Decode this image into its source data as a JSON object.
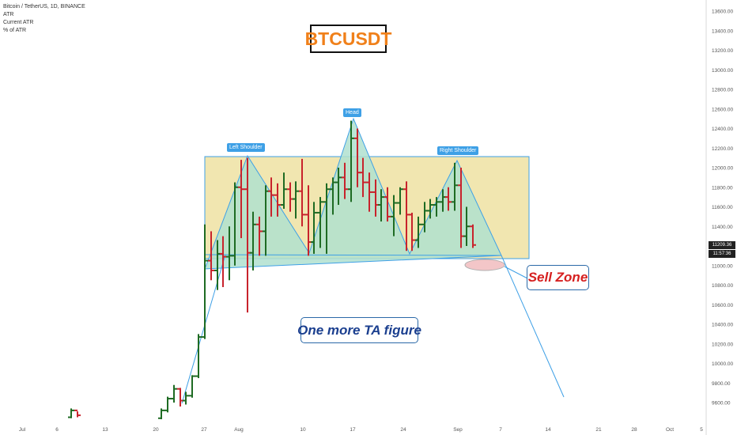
{
  "legend": {
    "line1": "Bitcoin / TetherUS, 1D, BINANCE",
    "line2": "ATR",
    "line3": "Current ATR",
    "line4": "% of ATR"
  },
  "title_box": "BTCUSDT",
  "notes": {
    "ta": "One more TA figure",
    "sell": "Sell Zone"
  },
  "pattern_labels": {
    "left_shoulder": "Left Shoulder",
    "head": "Head",
    "right_shoulder": "Right Shoulder"
  },
  "price_labels": {
    "last": "11209.36",
    "countdown": "11:57:36"
  },
  "colors": {
    "up": "#1e6b23",
    "down": "#c8232c",
    "zone_fill": "#f1e6b0",
    "pattern_fill": "#b0e0cf",
    "line": "#3ea0e6",
    "sell_ellipse": "#f3c6c8"
  },
  "chart_data": {
    "type": "bar",
    "ylim": [
      9450,
      13700
    ],
    "y_ticks": [
      "9600.00",
      "9800.00",
      "10000.00",
      "10200.00",
      "10400.00",
      "10600.00",
      "10800.00",
      "11000.00",
      "11200.00",
      "11400.00",
      "11600.00",
      "11800.00",
      "12000.00",
      "12200.00",
      "12400.00",
      "12600.00",
      "12800.00",
      "13000.00",
      "13200.00",
      "13400.00",
      "13600.00"
    ],
    "x_ticks": [
      "Jul",
      "6",
      "13",
      "20",
      "27",
      "Aug",
      "10",
      "17",
      "24",
      "Sep",
      "7",
      "14",
      "21",
      "28",
      "Oct",
      "5"
    ],
    "bars": [
      {
        "x": 90,
        "o": 9450,
        "h": 9540,
        "l": 9440,
        "c": 9520
      },
      {
        "x": 98,
        "o": 9520,
        "h": 9510,
        "l": 9450,
        "c": 9470
      },
      {
        "x": 204,
        "o": 9440,
        "h": 9540,
        "l": 9430,
        "c": 9520
      },
      {
        "x": 212,
        "o": 9520,
        "h": 9660,
        "l": 9500,
        "c": 9640
      },
      {
        "x": 220,
        "o": 9640,
        "h": 9780,
        "l": 9600,
        "c": 9740
      },
      {
        "x": 228,
        "o": 9740,
        "h": 9750,
        "l": 9560,
        "c": 9620
      },
      {
        "x": 235,
        "o": 9620,
        "h": 9710,
        "l": 9580,
        "c": 9670
      },
      {
        "x": 243,
        "o": 9670,
        "h": 9880,
        "l": 9650,
        "c": 9870
      },
      {
        "x": 251,
        "o": 9870,
        "h": 10300,
        "l": 9850,
        "c": 10270
      },
      {
        "x": 259,
        "o": 10270,
        "h": 11420,
        "l": 10250,
        "c": 11050
      },
      {
        "x": 267,
        "o": 11050,
        "h": 11350,
        "l": 10850,
        "c": 10950
      },
      {
        "x": 275,
        "o": 10950,
        "h": 11260,
        "l": 10750,
        "c": 11120
      },
      {
        "x": 282,
        "o": 11120,
        "h": 11300,
        "l": 10780,
        "c": 11090
      },
      {
        "x": 290,
        "o": 11090,
        "h": 11400,
        "l": 10850,
        "c": 11100
      },
      {
        "x": 297,
        "o": 11100,
        "h": 11850,
        "l": 11000,
        "c": 11800
      },
      {
        "x": 305,
        "o": 11800,
        "h": 12080,
        "l": 11280,
        "c": 11780
      },
      {
        "x": 313,
        "o": 11780,
        "h": 12100,
        "l": 10520,
        "c": 11130
      },
      {
        "x": 320,
        "o": 11130,
        "h": 11550,
        "l": 10950,
        "c": 11420
      },
      {
        "x": 328,
        "o": 11420,
        "h": 11500,
        "l": 11100,
        "c": 11350
      },
      {
        "x": 336,
        "o": 11350,
        "h": 11820,
        "l": 11100,
        "c": 11760
      },
      {
        "x": 343,
        "o": 11760,
        "h": 11900,
        "l": 11500,
        "c": 11720
      },
      {
        "x": 351,
        "o": 11720,
        "h": 11840,
        "l": 11500,
        "c": 11620
      },
      {
        "x": 359,
        "o": 11620,
        "h": 11950,
        "l": 11580,
        "c": 11780
      },
      {
        "x": 367,
        "o": 11780,
        "h": 11850,
        "l": 11550,
        "c": 11680
      },
      {
        "x": 374,
        "o": 11680,
        "h": 11860,
        "l": 11480,
        "c": 11760
      },
      {
        "x": 382,
        "o": 11760,
        "h": 12090,
        "l": 11400,
        "c": 11520
      },
      {
        "x": 390,
        "o": 11520,
        "h": 11820,
        "l": 11100,
        "c": 11240
      },
      {
        "x": 397,
        "o": 11240,
        "h": 11650,
        "l": 11120,
        "c": 11540
      },
      {
        "x": 405,
        "o": 11540,
        "h": 11700,
        "l": 11180,
        "c": 11650
      },
      {
        "x": 413,
        "o": 11650,
        "h": 11840,
        "l": 11120,
        "c": 11780
      },
      {
        "x": 421,
        "o": 11780,
        "h": 11900,
        "l": 11520,
        "c": 11850
      },
      {
        "x": 428,
        "o": 11850,
        "h": 12000,
        "l": 11620,
        "c": 11900
      },
      {
        "x": 436,
        "o": 11900,
        "h": 12050,
        "l": 11680,
        "c": 11780
      },
      {
        "x": 444,
        "o": 11780,
        "h": 12480,
        "l": 11650,
        "c": 12300
      },
      {
        "x": 452,
        "o": 12300,
        "h": 12400,
        "l": 11800,
        "c": 11950
      },
      {
        "x": 459,
        "o": 11950,
        "h": 12100,
        "l": 11700,
        "c": 11850
      },
      {
        "x": 467,
        "o": 11850,
        "h": 11950,
        "l": 11550,
        "c": 11750
      },
      {
        "x": 475,
        "o": 11750,
        "h": 11880,
        "l": 11500,
        "c": 11620
      },
      {
        "x": 482,
        "o": 11620,
        "h": 11780,
        "l": 11450,
        "c": 11700
      },
      {
        "x": 490,
        "o": 11700,
        "h": 11800,
        "l": 11450,
        "c": 11500
      },
      {
        "x": 498,
        "o": 11500,
        "h": 11720,
        "l": 11300,
        "c": 11640
      },
      {
        "x": 506,
        "o": 11640,
        "h": 11800,
        "l": 11520,
        "c": 11780
      },
      {
        "x": 514,
        "o": 11780,
        "h": 11860,
        "l": 11150,
        "c": 11520
      },
      {
        "x": 521,
        "o": 11520,
        "h": 11540,
        "l": 11150,
        "c": 11260
      },
      {
        "x": 529,
        "o": 11260,
        "h": 11500,
        "l": 11180,
        "c": 11420
      },
      {
        "x": 537,
        "o": 11420,
        "h": 11650,
        "l": 11340,
        "c": 11560
      },
      {
        "x": 544,
        "o": 11560,
        "h": 11680,
        "l": 11480,
        "c": 11620
      },
      {
        "x": 552,
        "o": 11620,
        "h": 11700,
        "l": 11500,
        "c": 11650
      },
      {
        "x": 560,
        "o": 11650,
        "h": 11780,
        "l": 11550,
        "c": 11700
      },
      {
        "x": 567,
        "o": 11700,
        "h": 11800,
        "l": 11560,
        "c": 11650
      },
      {
        "x": 575,
        "o": 11650,
        "h": 12050,
        "l": 11560,
        "c": 11820
      },
      {
        "x": 583,
        "o": 11820,
        "h": 12000,
        "l": 11180,
        "c": 11300
      },
      {
        "x": 590,
        "o": 11300,
        "h": 11600,
        "l": 11200,
        "c": 11400
      },
      {
        "x": 598,
        "o": 11400,
        "h": 11420,
        "l": 11180,
        "c": 11210
      }
    ]
  }
}
